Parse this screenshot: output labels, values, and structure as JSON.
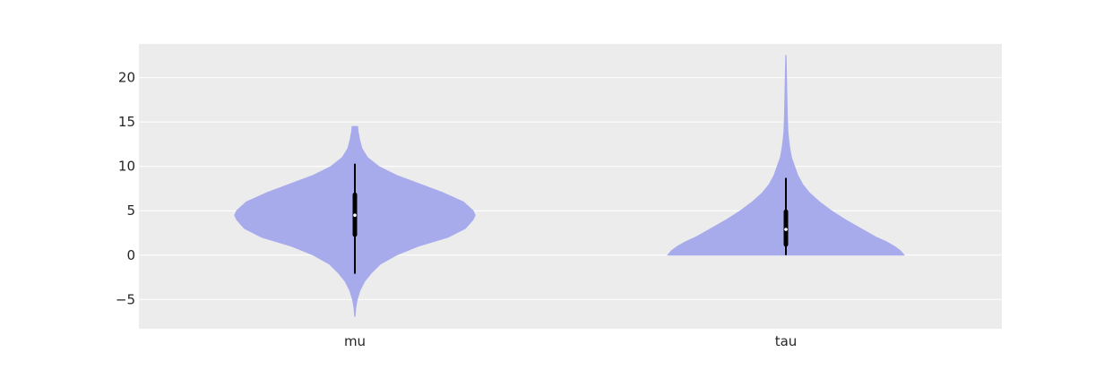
{
  "chart_data": {
    "type": "violin",
    "title": "",
    "xlabel": "",
    "ylabel": "",
    "ylim": [
      -8.3,
      23.8
    ],
    "yticks": [
      -5,
      0,
      5,
      10,
      15,
      20
    ],
    "ytick_labels": [
      "−5",
      "0",
      "5",
      "10",
      "15",
      "20"
    ],
    "categories": [
      "mu",
      "tau"
    ],
    "grid": true,
    "colors": {
      "background": "#ececec",
      "grid": "#ffffff",
      "violin_fill": "#a7abec",
      "interval": "#000000",
      "median": "#ffffff"
    },
    "series": [
      {
        "name": "mu",
        "min": -6.9,
        "max": 14.5,
        "q1": 2.3,
        "median": 4.5,
        "q3": 6.8,
        "whisker_low": -2.1,
        "whisker_high": 10.3,
        "density": [
          [
            -6.9,
            0.005
          ],
          [
            -6.0,
            0.02
          ],
          [
            -5.0,
            0.06
          ],
          [
            -4.0,
            0.13
          ],
          [
            -3.0,
            0.24
          ],
          [
            -2.0,
            0.42
          ],
          [
            -1.0,
            0.65
          ],
          [
            0.0,
            1.05
          ],
          [
            1.0,
            1.6
          ],
          [
            2.0,
            2.35
          ],
          [
            3.0,
            2.8
          ],
          [
            4.0,
            3.0
          ],
          [
            4.5,
            3.05
          ],
          [
            5.0,
            3.0
          ],
          [
            6.0,
            2.75
          ],
          [
            7.0,
            2.25
          ],
          [
            8.0,
            1.65
          ],
          [
            9.0,
            1.05
          ],
          [
            10.0,
            0.6
          ],
          [
            11.0,
            0.32
          ],
          [
            12.0,
            0.18
          ],
          [
            13.0,
            0.12
          ],
          [
            14.0,
            0.08
          ],
          [
            14.5,
            0.07
          ]
        ]
      },
      {
        "name": "tau",
        "min": 0.0,
        "max": 22.5,
        "q1": 1.2,
        "median": 2.9,
        "q3": 4.9,
        "whisker_low": 0.0,
        "whisker_high": 8.7,
        "density": [
          [
            0.0,
            3.0
          ],
          [
            0.5,
            2.9
          ],
          [
            1.0,
            2.75
          ],
          [
            1.5,
            2.55
          ],
          [
            2.0,
            2.3
          ],
          [
            3.0,
            1.9
          ],
          [
            4.0,
            1.5
          ],
          [
            5.0,
            1.15
          ],
          [
            6.0,
            0.85
          ],
          [
            7.0,
            0.6
          ],
          [
            8.0,
            0.42
          ],
          [
            9.0,
            0.3
          ],
          [
            10.0,
            0.22
          ],
          [
            11.0,
            0.14
          ],
          [
            12.0,
            0.1
          ],
          [
            13.0,
            0.07
          ],
          [
            14.0,
            0.05
          ],
          [
            16.0,
            0.035
          ],
          [
            18.0,
            0.025
          ],
          [
            20.0,
            0.015
          ],
          [
            22.5,
            0.005
          ]
        ]
      }
    ]
  }
}
